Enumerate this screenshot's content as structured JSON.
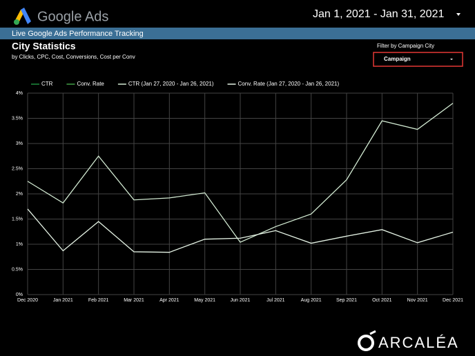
{
  "header": {
    "brand": "Google Ads",
    "date_range": "Jan 1, 2021 - Jan 31, 2021",
    "banner": "Live Google Ads Performance Tracking"
  },
  "filter": {
    "label": "Filter by Campaign City",
    "value": "Campaign"
  },
  "footer": {
    "logo": "ARCALÉA"
  },
  "chart_data": {
    "type": "line",
    "title": "City Statistics",
    "subtitle": "by Clicks, CPC, Cost, Conversions, Cost per Conv",
    "categories": [
      "Dec 2020",
      "Jan 2021",
      "Feb 2021",
      "Mar 2021",
      "Apr 2021",
      "May 2021",
      "Jun 2021",
      "Jul 2021",
      "Aug 2021",
      "Sep 2021",
      "Oct 2021",
      "Nov 2021",
      "Dec 2021"
    ],
    "series": [
      {
        "name": "CTR",
        "color": "#1e8e3e",
        "values": [
          null,
          null,
          null,
          null,
          null,
          null,
          null,
          null,
          null,
          null,
          null,
          null,
          null
        ]
      },
      {
        "name": "Conv. Rate",
        "color": "#43a047",
        "values": [
          null,
          null,
          null,
          null,
          null,
          null,
          null,
          null,
          null,
          null,
          null,
          null,
          null
        ]
      },
      {
        "name": "CTR (Jan 27, 2020 - Jan 26, 2021)",
        "color": "#d4ecd4",
        "values": [
          2.25,
          1.82,
          2.75,
          1.88,
          1.92,
          2.02,
          1.04,
          1.35,
          1.6,
          2.28,
          3.45,
          3.28,
          3.8
        ]
      },
      {
        "name": "Conv. Rate (Jan 27, 2020 - Jan 26, 2021)",
        "color": "#e6f4e6",
        "values": [
          1.7,
          0.87,
          1.45,
          0.85,
          0.84,
          1.1,
          1.12,
          1.27,
          1.02,
          1.16,
          1.29,
          1.03,
          1.24
        ]
      }
    ],
    "ylim": [
      0,
      4
    ],
    "yticks": [
      {
        "value": 0,
        "label": "0%"
      },
      {
        "value": 0.5,
        "label": "0.5%"
      },
      {
        "value": 1,
        "label": "1%"
      },
      {
        "value": 1.5,
        "label": "1.5%"
      },
      {
        "value": 2,
        "label": "2%"
      },
      {
        "value": 2.5,
        "label": "2.5%"
      },
      {
        "value": 3,
        "label": "3%"
      },
      {
        "value": 3.5,
        "label": "3.5%"
      },
      {
        "value": 4,
        "label": "4%"
      }
    ],
    "grid": true
  }
}
